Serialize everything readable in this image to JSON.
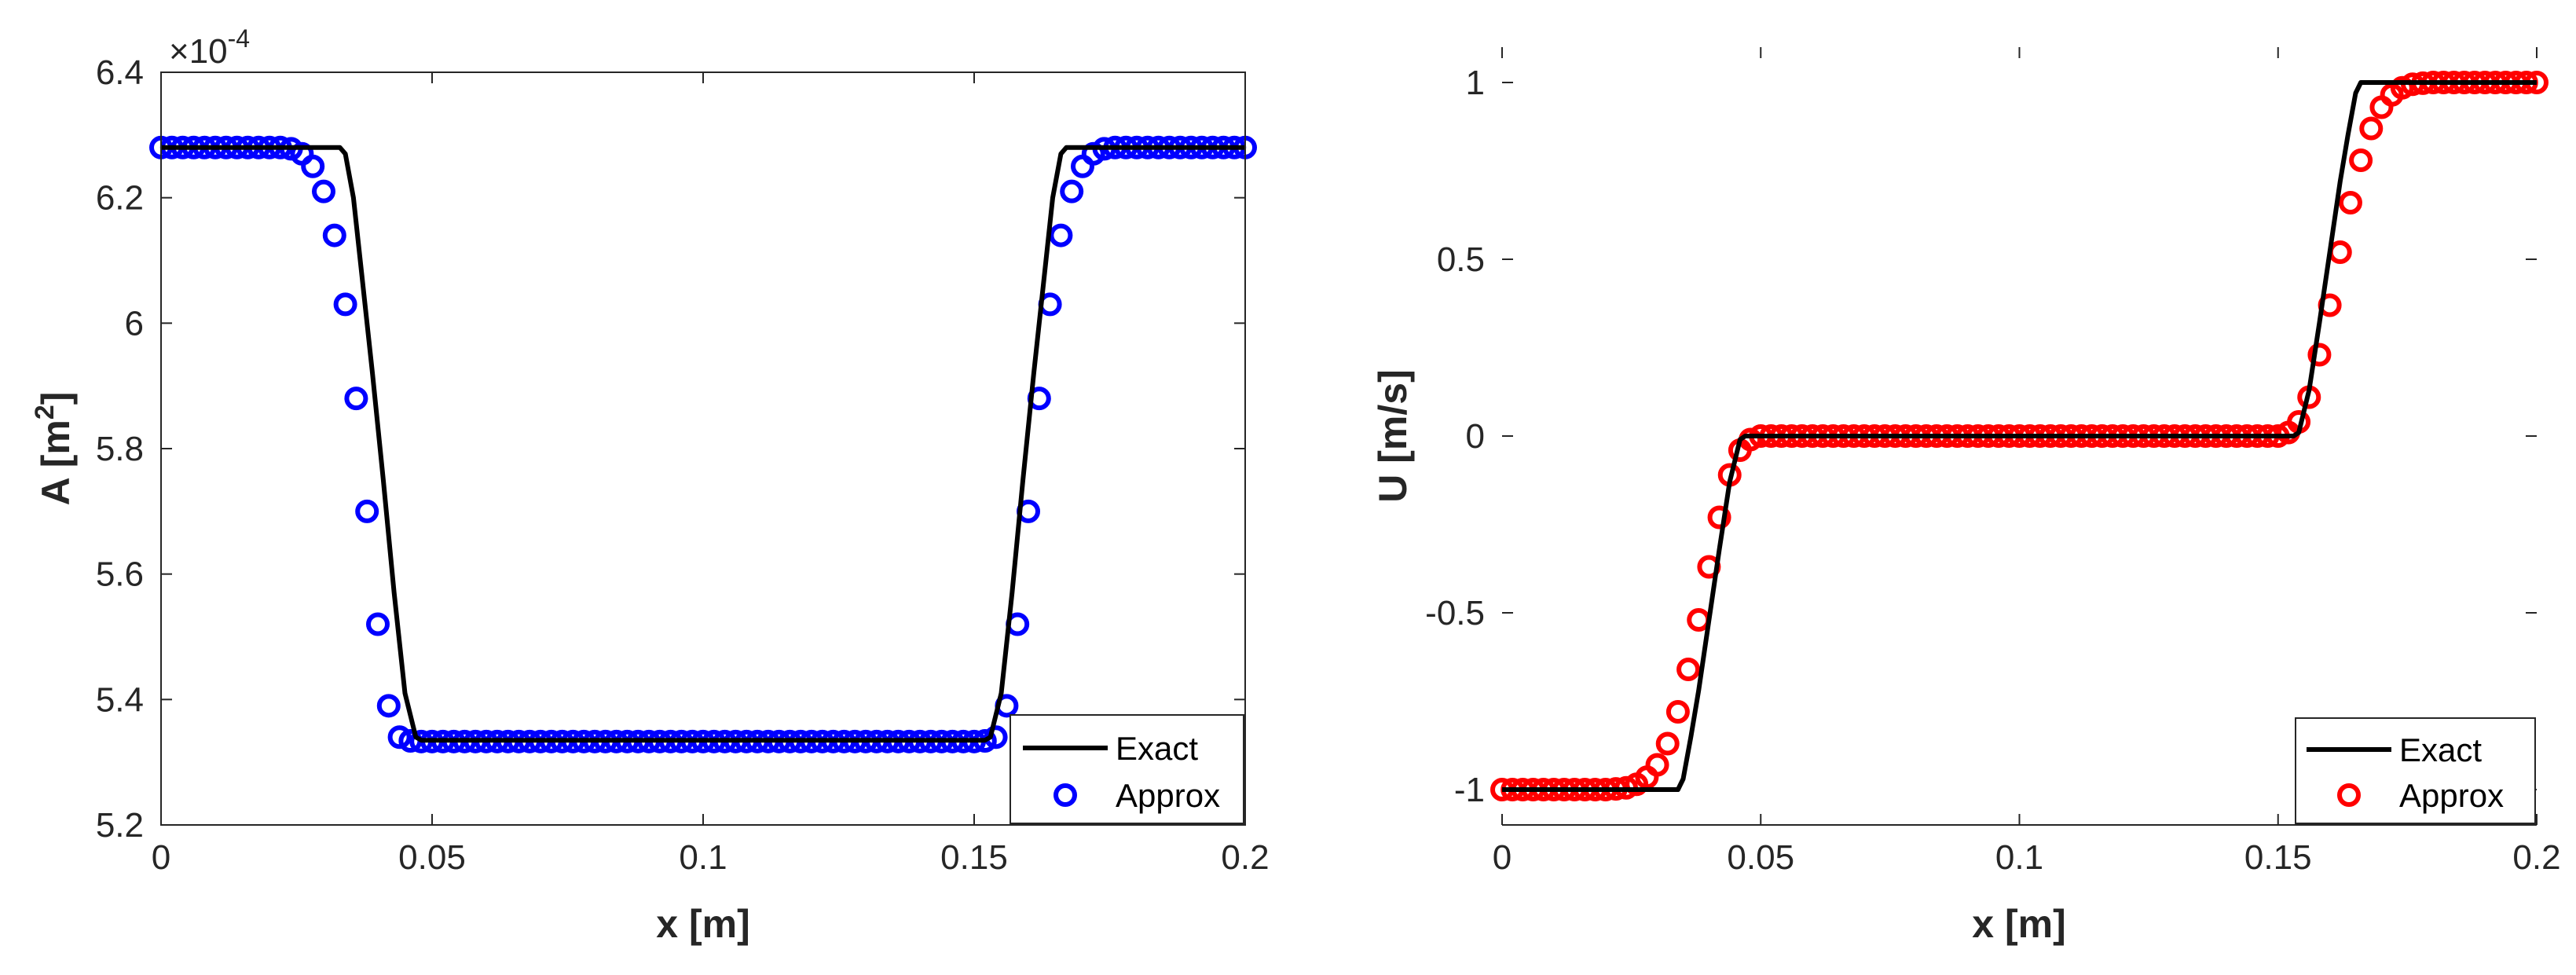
{
  "chart_data": [
    {
      "type": "line",
      "xlabel": "x [m]",
      "ylabel": "A [m",
      "ylabel_sup": "2",
      "ylabel_close": "]",
      "y_exponent": "×10",
      "y_exponent_power": "-4",
      "xlim": [
        0,
        0.2
      ],
      "ylim": [
        5.2,
        6.4
      ],
      "xticks": [
        0,
        0.05,
        0.1,
        0.15,
        0.2
      ],
      "xtick_labels": [
        "0",
        "0.05",
        "0.1",
        "0.15",
        "0.2"
      ],
      "yticks": [
        5.2,
        5.4,
        5.6,
        5.8,
        6,
        6.2,
        6.4
      ],
      "ytick_labels": [
        "5.2",
        "5.4",
        "5.6",
        "5.8",
        "6",
        "6.2",
        "6.4"
      ],
      "grid": false,
      "legend_position": "bottom-right",
      "series": [
        {
          "name": "Exact",
          "style": "line",
          "color": "#000000",
          "x": [
            0,
            0.033,
            0.034,
            0.0355,
            0.037,
            0.039,
            0.041,
            0.043,
            0.045,
            0.047,
            0.048,
            0.152,
            0.153,
            0.155,
            0.157,
            0.159,
            0.161,
            0.163,
            0.1645,
            0.166,
            0.167,
            0.2
          ],
          "y": [
            6.28,
            6.28,
            6.27,
            6.2,
            6.08,
            5.92,
            5.75,
            5.57,
            5.41,
            5.34,
            5.335,
            5.335,
            5.34,
            5.41,
            5.57,
            5.75,
            5.92,
            6.08,
            6.2,
            6.27,
            6.28,
            6.28
          ]
        },
        {
          "name": "Approx",
          "style": "markers-circle",
          "color": "#0000ff",
          "x": [
            0,
            0.002,
            0.004,
            0.006,
            0.008,
            0.01,
            0.012,
            0.014,
            0.016,
            0.018,
            0.02,
            0.022,
            0.024,
            0.026,
            0.028,
            0.03,
            0.032,
            0.034,
            0.036,
            0.038,
            0.04,
            0.042,
            0.044,
            0.046,
            0.048,
            0.05,
            0.052,
            0.054,
            0.056,
            0.058,
            0.06,
            0.062,
            0.064,
            0.066,
            0.068,
            0.07,
            0.072,
            0.074,
            0.076,
            0.078,
            0.08,
            0.082,
            0.084,
            0.086,
            0.088,
            0.09,
            0.092,
            0.094,
            0.096,
            0.098,
            0.1,
            0.102,
            0.104,
            0.106,
            0.108,
            0.11,
            0.112,
            0.114,
            0.116,
            0.118,
            0.12,
            0.122,
            0.124,
            0.126,
            0.128,
            0.13,
            0.132,
            0.134,
            0.136,
            0.138,
            0.14,
            0.142,
            0.144,
            0.146,
            0.148,
            0.15,
            0.152,
            0.154,
            0.156,
            0.158,
            0.16,
            0.162,
            0.164,
            0.166,
            0.168,
            0.17,
            0.172,
            0.174,
            0.176,
            0.178,
            0.18,
            0.182,
            0.184,
            0.186,
            0.188,
            0.19,
            0.192,
            0.194,
            0.196,
            0.198,
            0.2
          ],
          "y": [
            6.28,
            6.28,
            6.28,
            6.28,
            6.28,
            6.28,
            6.28,
            6.28,
            6.28,
            6.28,
            6.28,
            6.28,
            6.278,
            6.27,
            6.25,
            6.21,
            6.14,
            6.03,
            5.88,
            5.7,
            5.52,
            5.39,
            5.34,
            5.334,
            5.333,
            5.333,
            5.333,
            5.333,
            5.333,
            5.333,
            5.333,
            5.333,
            5.333,
            5.333,
            5.333,
            5.333,
            5.333,
            5.333,
            5.333,
            5.333,
            5.333,
            5.333,
            5.333,
            5.333,
            5.333,
            5.333,
            5.333,
            5.333,
            5.333,
            5.333,
            5.333,
            5.333,
            5.333,
            5.333,
            5.333,
            5.333,
            5.333,
            5.333,
            5.333,
            5.333,
            5.333,
            5.333,
            5.333,
            5.333,
            5.333,
            5.333,
            5.333,
            5.333,
            5.333,
            5.333,
            5.333,
            5.333,
            5.333,
            5.333,
            5.333,
            5.333,
            5.334,
            5.34,
            5.39,
            5.52,
            5.7,
            5.88,
            6.03,
            6.14,
            6.21,
            6.25,
            6.27,
            6.278,
            6.28,
            6.28,
            6.28,
            6.28,
            6.28,
            6.28,
            6.28,
            6.28,
            6.28,
            6.28,
            6.28,
            6.28,
            6.28
          ]
        }
      ]
    },
    {
      "type": "line",
      "xlabel": "x [m]",
      "ylabel": "U [m/s]",
      "xlim": [
        0,
        0.2
      ],
      "ylim": [
        -1.1,
        1.1
      ],
      "xticks": [
        0,
        0.05,
        0.1,
        0.15,
        0.2
      ],
      "xtick_labels": [
        "0",
        "0.05",
        "0.1",
        "0.15",
        "0.2"
      ],
      "yticks": [
        -1,
        -0.5,
        0,
        0.5,
        1
      ],
      "ytick_labels": [
        "-1",
        "-0.5",
        "0",
        "0.5",
        "1"
      ],
      "grid": false,
      "legend_position": "bottom-right",
      "series": [
        {
          "name": "Exact",
          "style": "line",
          "color": "#000000",
          "x": [
            0,
            0.034,
            0.035,
            0.0365,
            0.038,
            0.04,
            0.042,
            0.044,
            0.046,
            0.047,
            0.153,
            0.154,
            0.156,
            0.158,
            0.16,
            0.162,
            0.1635,
            0.165,
            0.166,
            0.2
          ],
          "y": [
            -1,
            -1,
            -0.97,
            -0.85,
            -0.72,
            -0.52,
            -0.32,
            -0.13,
            -0.01,
            0,
            0,
            0.01,
            0.13,
            0.32,
            0.52,
            0.72,
            0.85,
            0.97,
            1,
            1
          ]
        },
        {
          "name": "Approx",
          "style": "markers-circle",
          "color": "#ff0000",
          "x": [
            0,
            0.002,
            0.004,
            0.006,
            0.008,
            0.01,
            0.012,
            0.014,
            0.016,
            0.018,
            0.02,
            0.022,
            0.024,
            0.026,
            0.028,
            0.03,
            0.032,
            0.034,
            0.036,
            0.038,
            0.04,
            0.042,
            0.044,
            0.046,
            0.048,
            0.05,
            0.052,
            0.054,
            0.056,
            0.058,
            0.06,
            0.062,
            0.064,
            0.066,
            0.068,
            0.07,
            0.072,
            0.074,
            0.076,
            0.078,
            0.08,
            0.082,
            0.084,
            0.086,
            0.088,
            0.09,
            0.092,
            0.094,
            0.096,
            0.098,
            0.1,
            0.102,
            0.104,
            0.106,
            0.108,
            0.11,
            0.112,
            0.114,
            0.116,
            0.118,
            0.12,
            0.122,
            0.124,
            0.126,
            0.128,
            0.13,
            0.132,
            0.134,
            0.136,
            0.138,
            0.14,
            0.142,
            0.144,
            0.146,
            0.148,
            0.15,
            0.152,
            0.154,
            0.156,
            0.158,
            0.16,
            0.162,
            0.164,
            0.166,
            0.168,
            0.17,
            0.172,
            0.174,
            0.176,
            0.178,
            0.18,
            0.182,
            0.184,
            0.186,
            0.188,
            0.19,
            0.192,
            0.194,
            0.196,
            0.198,
            0.2
          ],
          "y": [
            -1,
            -1,
            -1,
            -1,
            -1,
            -1,
            -1,
            -1,
            -1,
            -1,
            -1,
            -0.998,
            -0.995,
            -0.985,
            -0.965,
            -0.93,
            -0.87,
            -0.78,
            -0.66,
            -0.52,
            -0.37,
            -0.23,
            -0.11,
            -0.04,
            -0.01,
            0,
            0,
            0,
            0,
            0,
            0,
            0,
            0,
            0,
            0,
            0,
            0,
            0,
            0,
            0,
            0,
            0,
            0,
            0,
            0,
            0,
            0,
            0,
            0,
            0,
            0,
            0,
            0,
            0,
            0,
            0,
            0,
            0,
            0,
            0,
            0,
            0,
            0,
            0,
            0,
            0,
            0,
            0,
            0,
            0,
            0,
            0,
            0,
            0,
            0,
            0,
            0.01,
            0.04,
            0.11,
            0.23,
            0.37,
            0.52,
            0.66,
            0.78,
            0.87,
            0.93,
            0.965,
            0.985,
            0.995,
            0.998,
            1,
            1,
            1,
            1,
            1,
            1,
            1,
            1,
            1,
            1,
            1
          ]
        }
      ]
    }
  ]
}
